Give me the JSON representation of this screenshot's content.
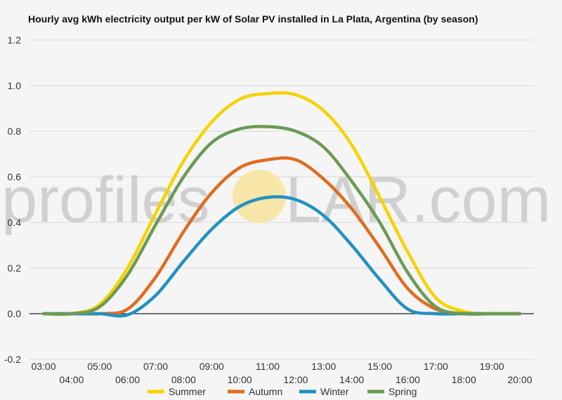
{
  "chart_data": {
    "type": "line",
    "title": "Hourly avg kWh electricity output per kW of Solar PV installed in La Plata, Argentina (by season)",
    "xlabel": "",
    "ylabel": "",
    "x": [
      "03:00",
      "04:00",
      "05:00",
      "06:00",
      "07:00",
      "08:00",
      "09:00",
      "10:00",
      "11:00",
      "12:00",
      "13:00",
      "14:00",
      "15:00",
      "16:00",
      "17:00",
      "18:00",
      "19:00",
      "20:00"
    ],
    "ylim": [
      -0.2,
      1.2
    ],
    "yticks": [
      -0.2,
      0.0,
      0.2,
      0.4,
      0.6,
      0.8,
      1.0,
      1.2
    ],
    "ytick_labels": [
      "-0.2",
      "0.0",
      "0.2",
      "0.4",
      "0.6",
      "0.8",
      "1.0",
      "1.2"
    ],
    "grid": true,
    "legend_position": "bottom",
    "series": [
      {
        "name": "Summer",
        "color": "#f5d300",
        "values": [
          0.0,
          0.0,
          0.04,
          0.2,
          0.44,
          0.67,
          0.84,
          0.94,
          0.965,
          0.96,
          0.89,
          0.74,
          0.51,
          0.27,
          0.07,
          0.01,
          0.0,
          0.0
        ]
      },
      {
        "name": "Autumn",
        "color": "#e06c1f",
        "values": [
          0.0,
          0.0,
          0.0,
          0.02,
          0.16,
          0.36,
          0.53,
          0.64,
          0.675,
          0.675,
          0.59,
          0.46,
          0.29,
          0.11,
          0.02,
          0.0,
          0.0,
          0.0
        ]
      },
      {
        "name": "Winter",
        "color": "#2291c2",
        "values": [
          0.0,
          0.0,
          0.0,
          -0.005,
          0.08,
          0.23,
          0.37,
          0.47,
          0.51,
          0.5,
          0.43,
          0.3,
          0.15,
          0.02,
          0.0,
          0.0,
          0.0,
          0.0
        ]
      },
      {
        "name": "Spring",
        "color": "#6c9a54",
        "values": [
          0.0,
          0.0,
          0.03,
          0.17,
          0.39,
          0.6,
          0.75,
          0.81,
          0.82,
          0.8,
          0.73,
          0.58,
          0.4,
          0.18,
          0.03,
          0.0,
          0.0,
          0.0
        ]
      }
    ]
  },
  "watermark": {
    "text_left": "profiles",
    "text_right": "LAR.com",
    "sun_color": "#f7e6a8"
  }
}
